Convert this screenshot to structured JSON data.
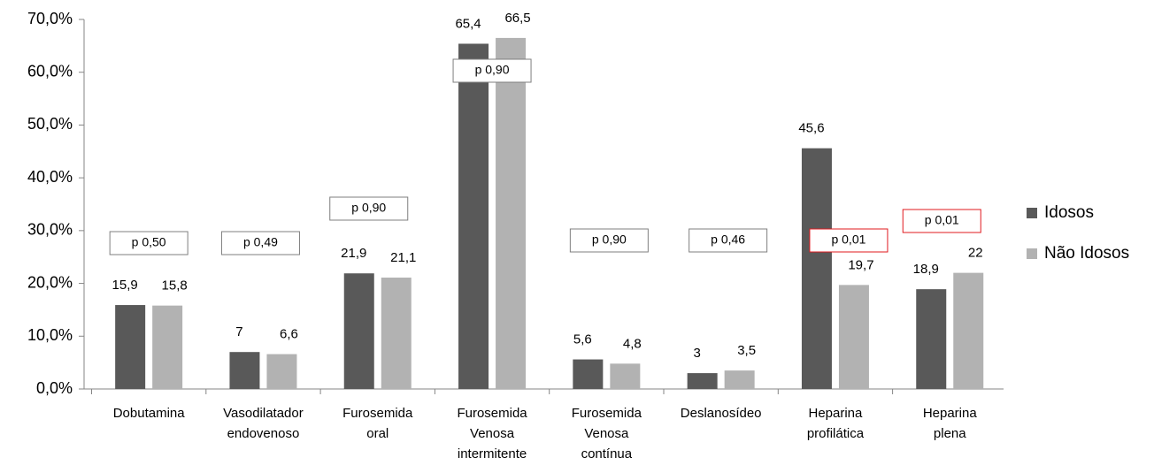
{
  "chart_data": {
    "type": "bar",
    "categories": [
      [
        "Dobutamina"
      ],
      [
        "Vasodilatador",
        "endovenoso"
      ],
      [
        "Furosemida",
        "oral"
      ],
      [
        "Furosemida",
        "Venosa",
        "intermitente"
      ],
      [
        "Furosemida",
        "Venosa",
        "contínua"
      ],
      [
        "Deslanosídeo"
      ],
      [
        "Heparina",
        "profilática"
      ],
      [
        "Heparina",
        "plena"
      ]
    ],
    "series": [
      {
        "name": "Idosos",
        "color": "#595959",
        "values": [
          15.9,
          7,
          21.9,
          65.4,
          5.6,
          3,
          45.6,
          18.9
        ],
        "value_labels": [
          "15,9",
          "7",
          "21,9",
          "65,4",
          "5,6",
          "3",
          "45,6",
          "18,9"
        ]
      },
      {
        "name": "Não Idosos",
        "color": "#b2b2b2",
        "values": [
          15.8,
          6.6,
          21.1,
          66.5,
          4.8,
          3.5,
          19.7,
          22
        ],
        "value_labels": [
          "15,8",
          "6,6",
          "21,1",
          "66,5",
          "4,8",
          "3,5",
          "19,7",
          "22"
        ]
      }
    ],
    "annotations": [
      {
        "text": "p 0,50",
        "color": "#7f7f7f"
      },
      {
        "text": "p 0,49",
        "color": "#7f7f7f"
      },
      {
        "text": "p 0,90",
        "color": "#7f7f7f"
      },
      {
        "text": "p 0,90",
        "color": "#7f7f7f"
      },
      {
        "text": "p 0,90",
        "color": "#7f7f7f"
      },
      {
        "text": "p 0,46",
        "color": "#7f7f7f"
      },
      {
        "text": "p 0,01",
        "color": "#e0191e"
      },
      {
        "text": "p 0,01",
        "color": "#e0191e"
      }
    ],
    "ylim": [
      0,
      70
    ],
    "yticks": [
      {
        "value": 0,
        "label": "0,0%"
      },
      {
        "value": 10,
        "label": "10,0%"
      },
      {
        "value": 20,
        "label": "20,0%"
      },
      {
        "value": 30,
        "label": "30,0%"
      },
      {
        "value": 40,
        "label": "40,0%"
      },
      {
        "value": 50,
        "label": "50,0%"
      },
      {
        "value": 60,
        "label": "60,0%"
      },
      {
        "value": 70,
        "label": "70,0%"
      }
    ],
    "legend": "right",
    "grid": false
  }
}
